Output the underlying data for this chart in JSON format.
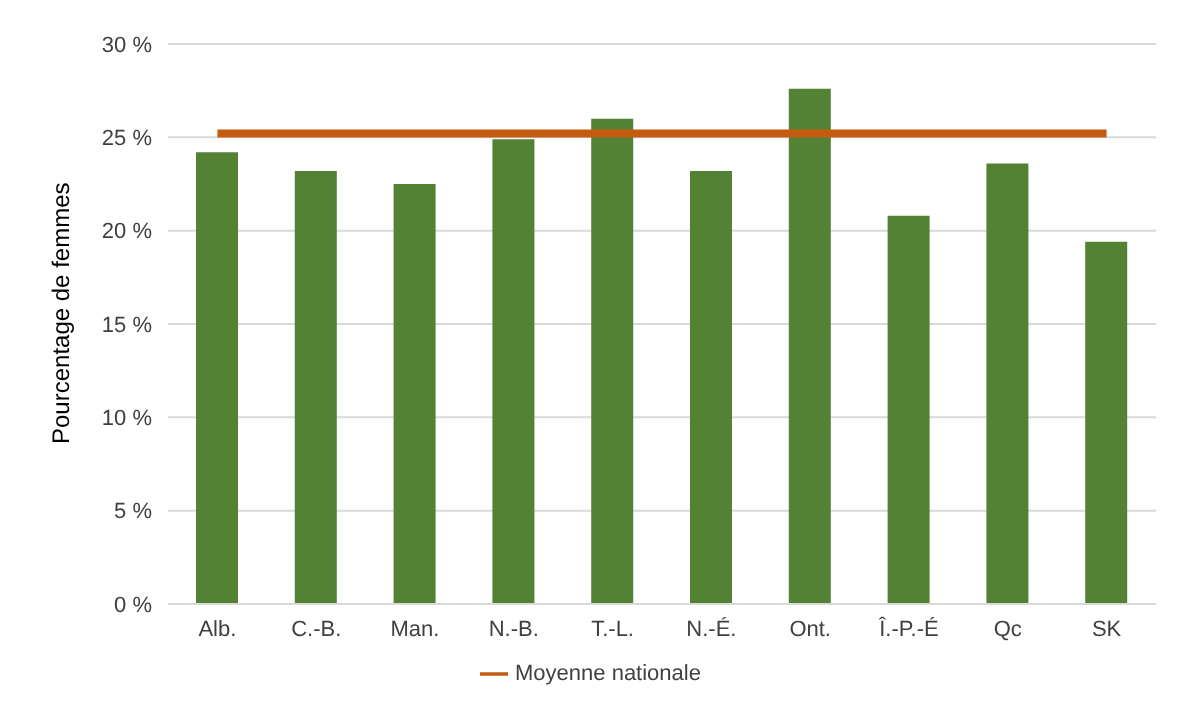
{
  "chart_data": {
    "type": "bar",
    "ylabel": "Pourcentage de femmes",
    "categories": [
      "Alb.",
      "C.-B.",
      "Man.",
      "N.-B.",
      "T.-L.",
      "N.-É.",
      "Ont.",
      "Î.-P.-É",
      "Qc",
      "SK"
    ],
    "series": [
      {
        "color": "#548235",
        "values": [
          24.2,
          23.2,
          22.5,
          24.9,
          26.0,
          23.2,
          27.6,
          20.8,
          23.6,
          19.4
        ]
      },
      {
        "type": "line",
        "name": "Moyenne nationale",
        "color": "#c55a11",
        "values": [
          25.2,
          25.2,
          25.2,
          25.2,
          25.2,
          25.2,
          25.2,
          25.2,
          25.2,
          25.2
        ]
      }
    ],
    "ylim": [
      0,
      30
    ],
    "yticks": [
      {
        "value": 0,
        "label": "0 %"
      },
      {
        "value": 5,
        "label": "5 %"
      },
      {
        "value": 10,
        "label": "10 %"
      },
      {
        "value": 15,
        "label": "15 %"
      },
      {
        "value": 20,
        "label": "20 %"
      },
      {
        "value": 25,
        "label": "25 %"
      },
      {
        "value": 30,
        "label": "30 %"
      }
    ],
    "grid": "y",
    "legend": "bottom",
    "marker": "none"
  }
}
